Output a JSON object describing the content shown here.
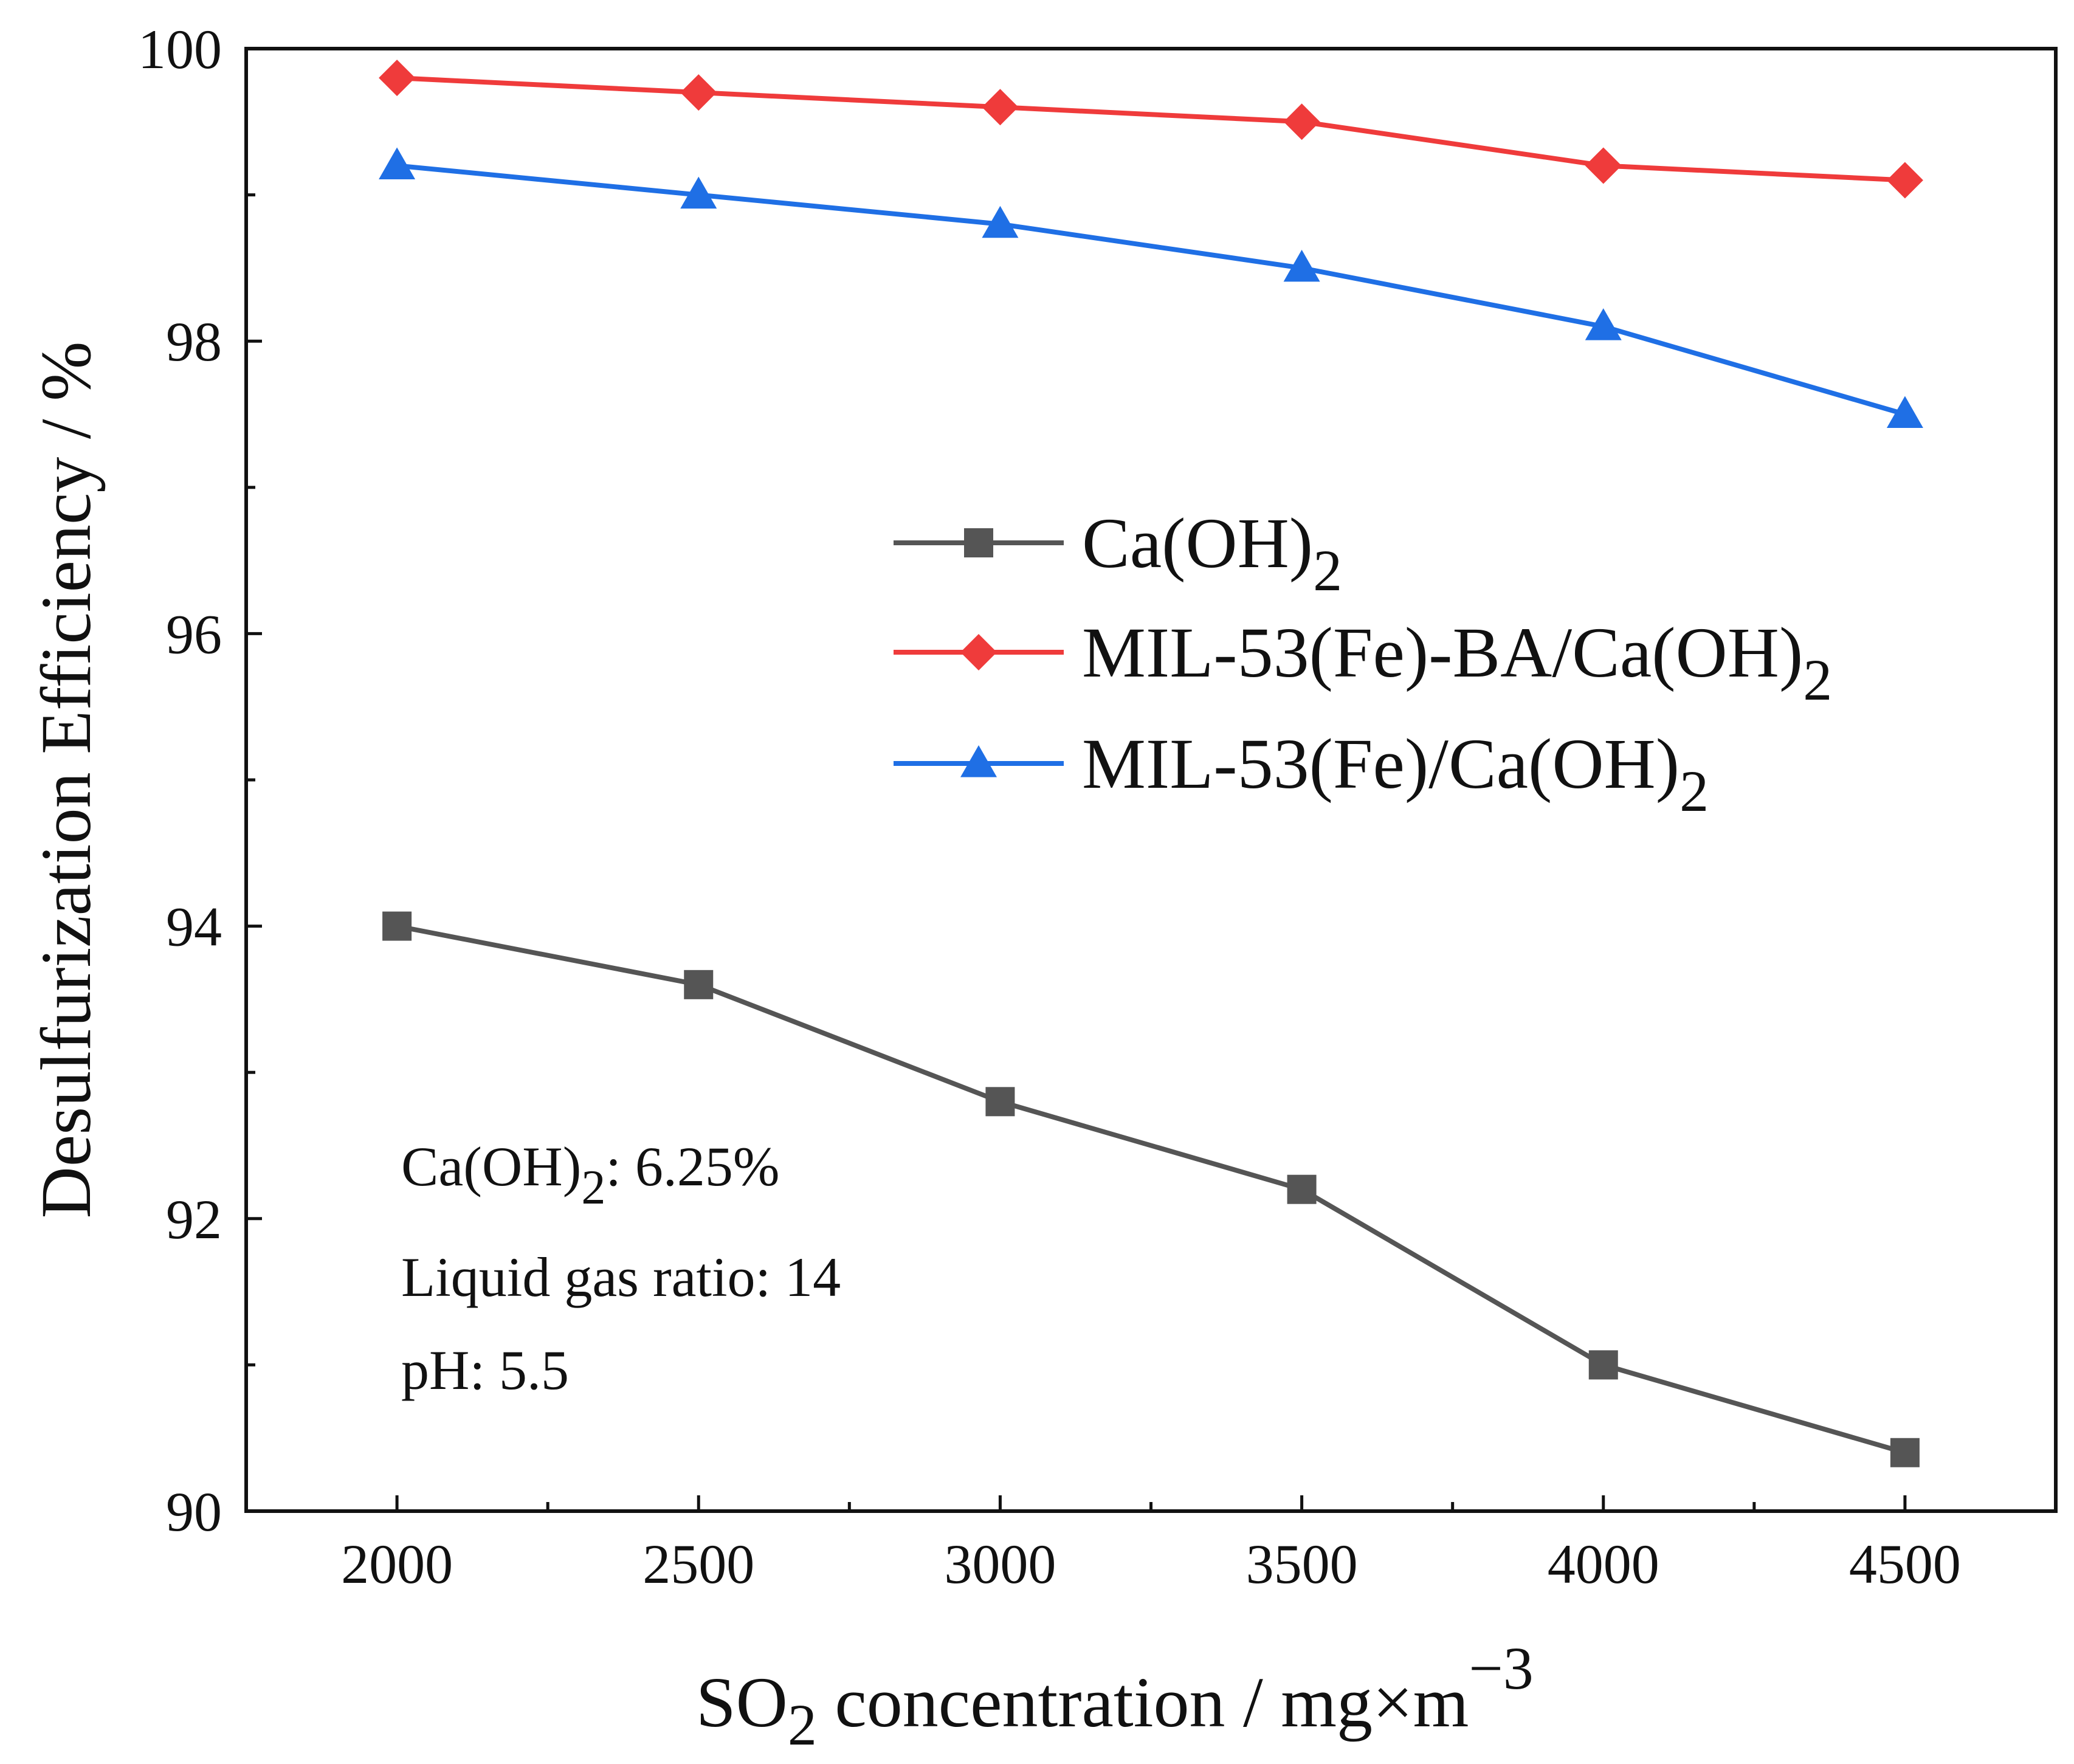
{
  "chart_data": {
    "type": "line",
    "title": "",
    "x": [
      2000,
      2500,
      3000,
      3500,
      4000,
      4500
    ],
    "xlim": [
      1750,
      4750
    ],
    "ylim": [
      90,
      100
    ],
    "x_ticks": [
      "2000",
      "2500",
      "3000",
      "3500",
      "4000",
      "4500"
    ],
    "y_ticks": [
      "90",
      "92",
      "94",
      "96",
      "98",
      "100"
    ],
    "xlabel": {
      "main": "SO",
      "sub": "2",
      "rest": " concentration / mg×m",
      "sup": "−3"
    },
    "ylabel": "Desulfurization Efficiency / %",
    "legend_position": "center-right",
    "series": [
      {
        "name": "Ca(OH)2",
        "label_main": "Ca(OH)",
        "label_sub": "2",
        "color": "#555555",
        "marker": "square",
        "values": [
          94.0,
          93.6,
          92.8,
          92.2,
          91.0,
          90.4
        ]
      },
      {
        "name": "MIL-53(Fe)-BA/Ca(OH)2",
        "label_main": "MIL-53(Fe)-BA/Ca(OH)",
        "label_sub": "2",
        "color": "#ef3b3b",
        "marker": "diamond",
        "values": [
          99.8,
          99.7,
          99.6,
          99.5,
          99.2,
          99.1
        ]
      },
      {
        "name": "MIL-53(Fe)/Ca(OH)2",
        "label_main": "MIL-53(Fe)/Ca(OH)",
        "label_sub": "2",
        "color": "#1f6fe5",
        "marker": "triangle",
        "values": [
          99.2,
          99.0,
          98.8,
          98.5,
          98.1,
          97.5
        ]
      }
    ],
    "annotations": [
      {
        "main": "Ca(OH)",
        "sub": "2",
        "rest": ": 6.25%"
      },
      {
        "main": "Liquid gas ratio: 14",
        "sub": "",
        "rest": ""
      },
      {
        "main": "pH: 5.5",
        "sub": "",
        "rest": ""
      }
    ]
  }
}
